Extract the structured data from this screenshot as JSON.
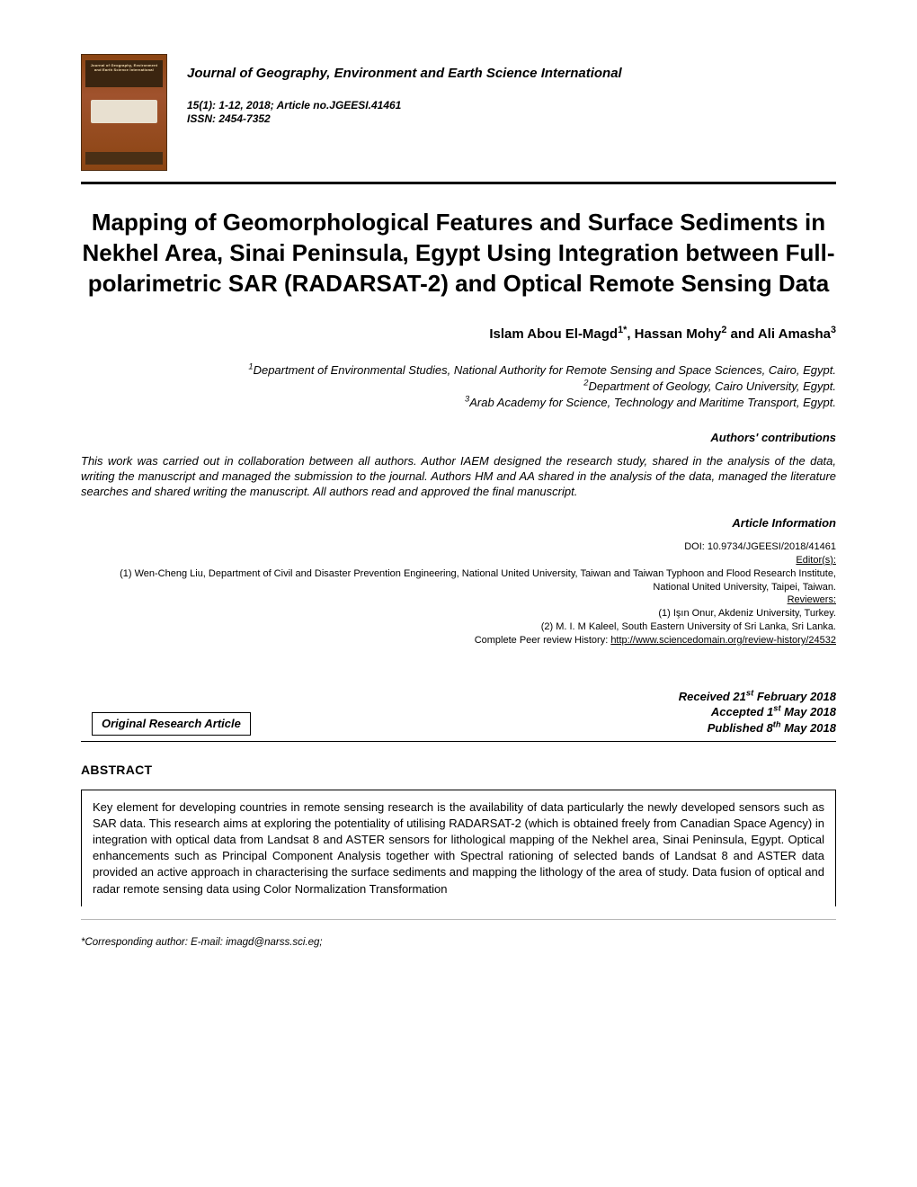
{
  "journal": {
    "name": "Journal of Geography, Environment and Earth Science International",
    "cover_text": "Journal of Geography, Environment and Earth Science International",
    "issue_line": "15(1): 1-12, 2018; Article no.JGEESI.41461",
    "issn_line": "ISSN: 2454-7352"
  },
  "title": "Mapping of Geomorphological Features and Surface Sediments in Nekhel Area, Sinai Peninsula, Egypt Using Integration between Full-polarimetric SAR (RADARSAT-2) and Optical Remote Sensing Data",
  "authors": [
    {
      "name": "Islam Abou El-Magd",
      "sup": "1*"
    },
    {
      "name": "Hassan Mohy",
      "sup": "2"
    },
    {
      "name": "Ali Amasha",
      "sup": "3"
    }
  ],
  "affiliations": [
    {
      "sup": "1",
      "text": "Department of Environmental Studies, National Authority for Remote Sensing and Space Sciences, Cairo, Egypt."
    },
    {
      "sup": "2",
      "text": "Department of Geology, Cairo University, Egypt."
    },
    {
      "sup": "3",
      "text": "Arab Academy for Science, Technology and Maritime Transport, Egypt."
    }
  ],
  "contributions_label": "Authors' contributions",
  "contributions": "This work was carried out in collaboration between all authors. Author IAEM designed the research study, shared in the analysis of the data, writing the manuscript and managed the submission to the journal. Authors HM and AA shared in the analysis of the data, managed the literature searches and shared writing the manuscript. All authors read and approved the final manuscript.",
  "article_info_label": "Article Information",
  "article_info": {
    "doi": "DOI: 10.9734/JGEESI/2018/41461",
    "editors_head": "Editor(s):",
    "editor1": "(1) Wen-Cheng Liu, Department of Civil and Disaster Prevention Engineering, National United University, Taiwan and Taiwan Typhoon and Flood Research Institute, National United University, Taipei, Taiwan.",
    "reviewers_head": "Reviewers:",
    "reviewer1": "(1) Işın Onur, Akdeniz University, Turkey.",
    "reviewer2": "(2) M. I. M Kaleel, South Eastern University of Sri Lanka, Sri Lanka.",
    "history_pre": "Complete Peer review History: ",
    "history_url": "http://www.sciencedomain.org/review-history/24532"
  },
  "dates": {
    "received": "Received 21",
    "received_sup": "st",
    "received_post": " February 2018",
    "accepted": "Accepted 1",
    "accepted_sup": "st",
    "accepted_post": " May 2018",
    "published": "Published 8",
    "published_sup": "th",
    "published_post": " May 2018"
  },
  "article_type": "Original Research Article",
  "abstract_head": "ABSTRACT",
  "abstract": "Key element for developing countries in remote sensing research is the availability of data particularly the newly developed sensors such as SAR data. This research aims at exploring the potentiality of utilising RADARSAT-2 (which is obtained freely from Canadian Space Agency) in integration with optical data from Landsat 8 and ASTER sensors for lithological mapping of the Nekhel area, Sinai Peninsula, Egypt. Optical enhancements such as Principal Component Analysis together with Spectral rationing of selected bands of Landsat 8 and ASTER data provided an active approach in characterising the surface sediments and mapping the lithology of the area of study. Data fusion of optical and radar remote sensing data using Color Normalization Transformation",
  "footer": "*Corresponding author: E-mail: imagd@narss.sci.eg;",
  "colors": {
    "background": "#ffffff",
    "text": "#000000",
    "cover_brown": "#8b4513",
    "cover_dark": "#3b2510"
  }
}
